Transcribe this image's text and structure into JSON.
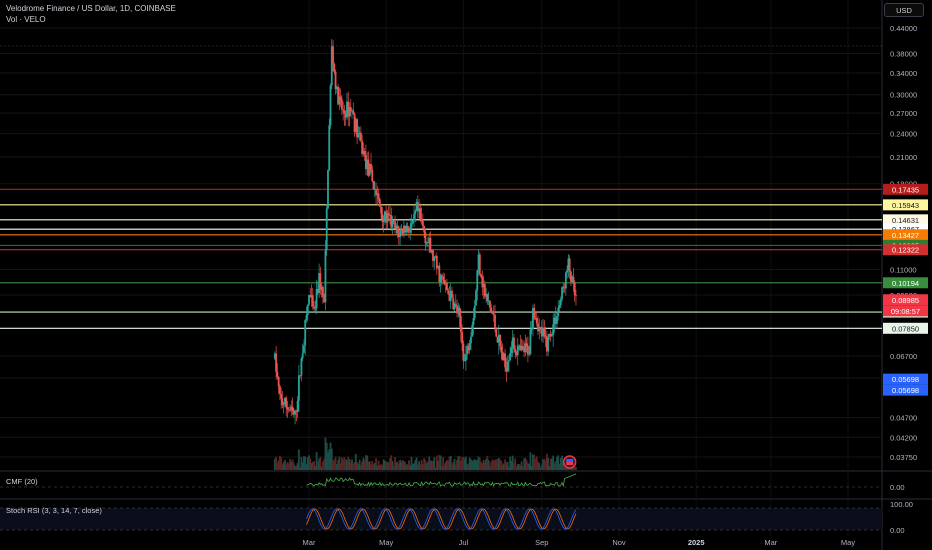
{
  "header": {
    "symbol": "Velodrome Finance / US Dollar, 1D, COINBASE",
    "volume_label": "Vol · VELO"
  },
  "currency_button": "USD",
  "panes": {
    "cmf_label": "CMF (20)",
    "cmf_ticks": [
      "0.00"
    ],
    "stoch_label": "Stoch RSI (3, 3, 14, 7, close)",
    "stoch_ticks": [
      "100.00",
      "0.00"
    ]
  },
  "chart_data": {
    "type": "candlestick",
    "title": "Velodrome Finance / US Dollar, 1D, COINBASE",
    "scale": "log",
    "ylim": [
      0.035,
      0.46
    ],
    "y_ticks": [
      "0.44000",
      "0.38000",
      "0.34000",
      "0.30000",
      "0.27000",
      "0.24000",
      "0.21000",
      "0.18000",
      "0.11000",
      "0.09500",
      "0.06700",
      "0.05900",
      "0.04700",
      "0.04200",
      "0.03750"
    ],
    "x_ticks": [
      "Mar",
      "May",
      "Jul",
      "Sep",
      "Nov",
      "2025",
      "Mar",
      "May"
    ],
    "x_tick_dates": [
      "2024-03-01",
      "2024-05-01",
      "2024-07-01",
      "2024-09-01",
      "2024-11-01",
      "2025-01-01",
      "2025-03-01",
      "2025-05-01"
    ],
    "price_path": [
      [
        "2024-02-03",
        0.066
      ],
      [
        "2024-02-07",
        0.052
      ],
      [
        "2024-02-13",
        0.05
      ],
      [
        "2024-02-19",
        0.047
      ],
      [
        "2024-02-25",
        0.07
      ],
      [
        "2024-03-01",
        0.095
      ],
      [
        "2024-03-05",
        0.085
      ],
      [
        "2024-03-09",
        0.105
      ],
      [
        "2024-03-13",
        0.09
      ],
      [
        "2024-03-16",
        0.2
      ],
      [
        "2024-03-19",
        0.39
      ],
      [
        "2024-03-23",
        0.3
      ],
      [
        "2024-03-28",
        0.27
      ],
      [
        "2024-04-03",
        0.28
      ],
      [
        "2024-04-10",
        0.23
      ],
      [
        "2024-04-16",
        0.2
      ],
      [
        "2024-04-22",
        0.175
      ],
      [
        "2024-04-28",
        0.15
      ],
      [
        "2024-05-04",
        0.145
      ],
      [
        "2024-05-10",
        0.135
      ],
      [
        "2024-05-16",
        0.14
      ],
      [
        "2024-05-22",
        0.14
      ],
      [
        "2024-05-25",
        0.155
      ],
      [
        "2024-05-30",
        0.14
      ],
      [
        "2024-06-06",
        0.12
      ],
      [
        "2024-06-13",
        0.105
      ],
      [
        "2024-06-20",
        0.095
      ],
      [
        "2024-06-27",
        0.085
      ],
      [
        "2024-07-02",
        0.065
      ],
      [
        "2024-07-05",
        0.072
      ],
      [
        "2024-07-10",
        0.09
      ],
      [
        "2024-07-13",
        0.118
      ],
      [
        "2024-07-18",
        0.095
      ],
      [
        "2024-07-24",
        0.085
      ],
      [
        "2024-07-30",
        0.07
      ],
      [
        "2024-08-03",
        0.063
      ],
      [
        "2024-08-08",
        0.072
      ],
      [
        "2024-08-15",
        0.068
      ],
      [
        "2024-08-22",
        0.07
      ],
      [
        "2024-08-25",
        0.09
      ],
      [
        "2024-08-30",
        0.078
      ],
      [
        "2024-09-05",
        0.072
      ],
      [
        "2024-09-10",
        0.08
      ],
      [
        "2024-09-15",
        0.09
      ],
      [
        "2024-09-19",
        0.102
      ],
      [
        "2024-09-22",
        0.113
      ],
      [
        "2024-09-26",
        0.098
      ],
      [
        "2024-09-28",
        0.092
      ]
    ],
    "horizontal_lines": [
      {
        "value": 0.17435,
        "label": "0.17435",
        "color": "#b71c1c"
      },
      {
        "value": 0.15943,
        "label": "0.15943",
        "color": "#fff59d"
      },
      {
        "value": 0.14631,
        "label": "0.14631",
        "color": "#fff8e1"
      },
      {
        "value": 0.13867,
        "label": "0.13867",
        "color": "#ffffff"
      },
      {
        "value": 0.13427,
        "label": "0.13427",
        "color": "#f57c00"
      },
      {
        "value": 0.12635,
        "label": "0.12635",
        "color": "#2e7d32"
      },
      {
        "value": 0.12322,
        "label": "0.12322",
        "color": "#d32f2f"
      },
      {
        "value": 0.10194,
        "label": "0.10194",
        "color": "#388e3c"
      },
      {
        "value": 0.08615,
        "label": "0.08615",
        "color": "#c8e6c9"
      },
      {
        "value": 0.0785,
        "label": "0.07850",
        "color": "#e8f5e9"
      }
    ],
    "price_tags": [
      {
        "value": 0.08985,
        "label": "0.08985",
        "color": "#f23645"
      },
      {
        "value": 0.08985,
        "label": "09:08:57",
        "color": "#f23645"
      },
      {
        "value": 0.05698,
        "label": "0.05698",
        "color": "#2962ff"
      },
      {
        "value": 0.05698,
        "label": "0.05698",
        "color": "#2962ff"
      }
    ],
    "last_price": 0.08985,
    "countdown": "09:08:57",
    "colors": {
      "up": "#26a69a",
      "down": "#ef5350",
      "cmf": "#4caf50",
      "stoch_k": "#2962ff",
      "stoch_d": "#ff6d00"
    }
  }
}
